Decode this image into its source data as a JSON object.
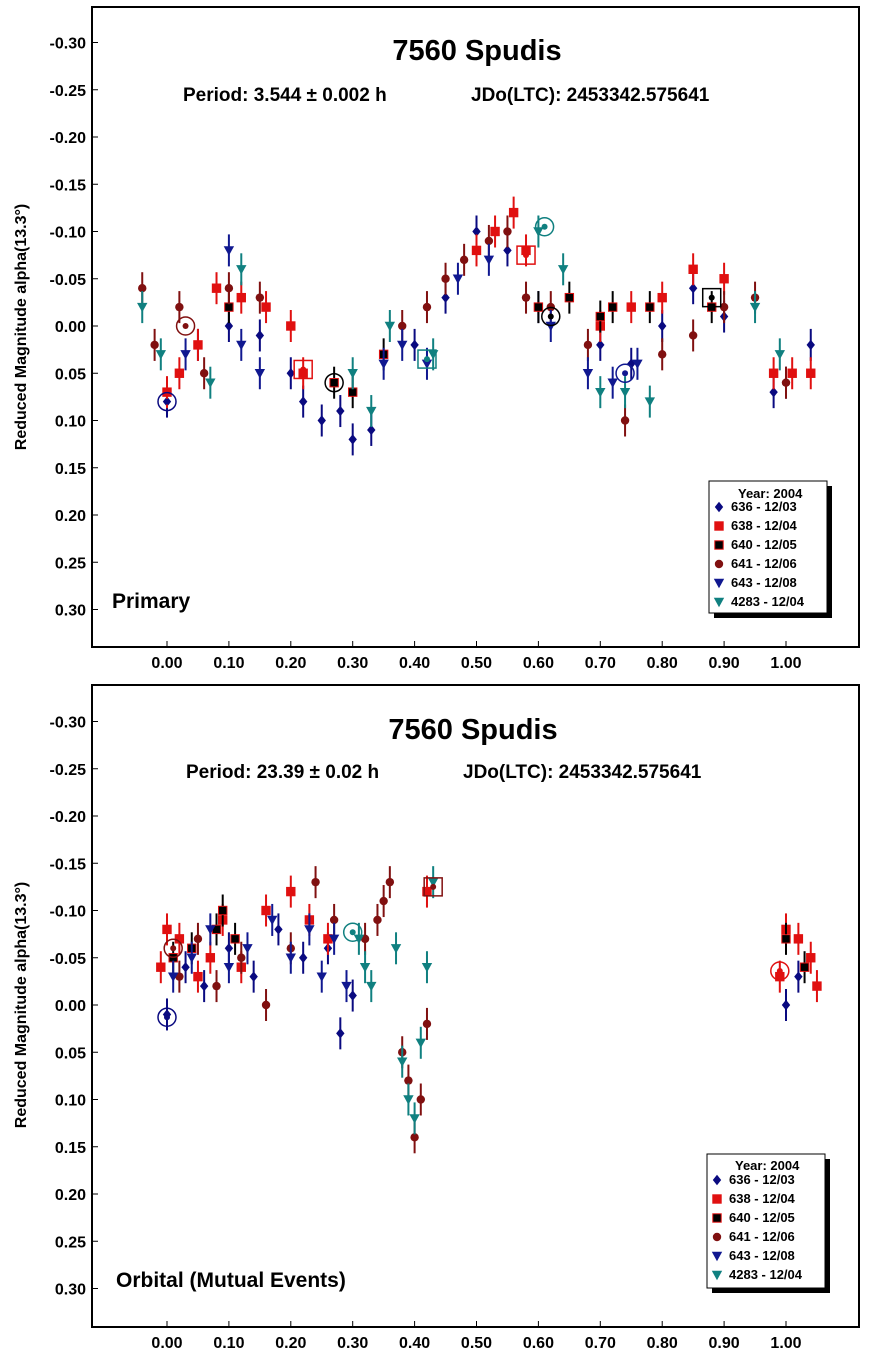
{
  "colors": {
    "636": "#0a0a80",
    "638": "#e01010",
    "640": "#000000",
    "641": "#801010",
    "643": "#101890",
    "4283": "#108080"
  },
  "chart_data": [
    {
      "type": "scatter",
      "title": "7560 Spudis",
      "subtitle_period": "Period: 3.544 ± 0.002 h",
      "subtitle_epoch": "JDo(LTC): 2453342.575641",
      "panel_label": "Primary",
      "xlabel": "",
      "ylabel": "Reduced Magnitude alpha(13.3°)",
      "xlim": [
        -0.12,
        1.12
      ],
      "ylim": [
        -0.35,
        0.35
      ],
      "y_inverted": true,
      "x_ticks": [
        "0.00",
        "0.10",
        "0.20",
        "0.30",
        "0.40",
        "0.50",
        "0.60",
        "0.70",
        "0.80",
        "0.90",
        "1.00"
      ],
      "y_ticks": [
        "-0.30",
        "-0.25",
        "-0.20",
        "-0.15",
        "-0.10",
        "-0.05",
        "0.00",
        "0.05",
        "0.10",
        "0.15",
        "0.20",
        "0.25",
        "0.30"
      ],
      "legend": {
        "title": "Year: 2004",
        "position": "bottom-right",
        "entries": [
          "636 - 12/03",
          "638 - 12/04",
          "640 - 12/05",
          "641 - 12/06",
          "643 - 12/08",
          "4283 - 12/04"
        ]
      },
      "series": [
        {
          "name": "636 - 12/03",
          "marker": "diamond",
          "color_key": "636",
          "x": [
            0.0,
            0.05,
            0.1,
            0.15,
            0.2,
            0.22,
            0.25,
            0.28,
            0.3,
            0.33,
            0.4,
            0.45,
            0.5,
            0.55,
            0.6,
            0.7,
            0.75,
            0.8,
            0.85,
            0.9,
            0.98,
            1.0,
            1.04
          ],
          "y": [
            0.08,
            0.02,
            0.0,
            0.01,
            0.05,
            0.08,
            0.1,
            0.09,
            0.12,
            0.11,
            0.02,
            -0.03,
            -0.1,
            -0.08,
            -0.02,
            0.02,
            0.04,
            0.0,
            -0.04,
            -0.01,
            0.07,
            0.06,
            0.02
          ]
        },
        {
          "name": "638 - 12/04",
          "marker": "square",
          "color_key": "638",
          "x": [
            0.0,
            0.02,
            0.05,
            0.08,
            0.12,
            0.16,
            0.2,
            0.22,
            0.5,
            0.53,
            0.56,
            0.58,
            0.7,
            0.75,
            0.8,
            0.85,
            0.9,
            0.98,
            1.01,
            1.04
          ],
          "y": [
            0.07,
            0.05,
            0.02,
            -0.04,
            -0.03,
            -0.02,
            0.0,
            0.05,
            -0.08,
            -0.1,
            -0.12,
            -0.08,
            0.0,
            -0.02,
            -0.03,
            -0.06,
            -0.05,
            0.05,
            0.05,
            0.05
          ]
        },
        {
          "name": "640 - 12/05",
          "marker": "square",
          "color_key": "640",
          "x": [
            0.1,
            0.27,
            0.3,
            0.35,
            0.6,
            0.65,
            0.7,
            0.72,
            0.78,
            0.88
          ],
          "y": [
            -0.02,
            0.06,
            0.07,
            0.03,
            -0.02,
            -0.03,
            -0.01,
            -0.02,
            -0.02,
            -0.02
          ]
        },
        {
          "name": "641 - 12/06",
          "marker": "circle",
          "color_key": "641",
          "x": [
            -0.04,
            -0.02,
            0.02,
            0.06,
            0.1,
            0.15,
            0.38,
            0.42,
            0.45,
            0.48,
            0.52,
            0.55,
            0.58,
            0.62,
            0.68,
            0.74,
            0.8,
            0.85,
            0.9,
            0.95,
            1.0
          ],
          "y": [
            -0.04,
            0.02,
            -0.02,
            0.05,
            -0.04,
            -0.03,
            0.0,
            -0.02,
            -0.05,
            -0.07,
            -0.09,
            -0.1,
            -0.03,
            -0.02,
            0.02,
            0.1,
            0.03,
            0.01,
            -0.02,
            -0.03,
            0.06
          ]
        },
        {
          "name": "643 - 12/08",
          "marker": "triangle-down",
          "color_key": "643",
          "x": [
            0.03,
            0.1,
            0.12,
            0.15,
            0.35,
            0.38,
            0.42,
            0.47,
            0.52,
            0.62,
            0.68,
            0.72,
            0.76
          ],
          "y": [
            0.03,
            -0.08,
            0.02,
            0.05,
            0.04,
            0.02,
            0.04,
            -0.05,
            -0.07,
            0.0,
            0.05,
            0.06,
            0.04
          ]
        },
        {
          "name": "4283 - 12/04",
          "marker": "triangle-down",
          "color_key": "4283",
          "x": [
            -0.04,
            -0.01,
            0.07,
            0.12,
            0.3,
            0.33,
            0.36,
            0.43,
            0.6,
            0.64,
            0.7,
            0.74,
            0.78,
            0.95,
            0.99
          ],
          "y": [
            -0.02,
            0.03,
            0.06,
            -0.06,
            0.05,
            0.09,
            0.0,
            0.03,
            -0.1,
            -0.06,
            0.07,
            0.07,
            0.08,
            -0.02,
            0.03
          ]
        }
      ],
      "circled_points": [
        {
          "x": 0.0,
          "y": 0.08,
          "color_key": "636",
          "shape": "circle"
        },
        {
          "x": 0.03,
          "y": 0.0,
          "color_key": "641",
          "shape": "circle"
        },
        {
          "x": 0.22,
          "y": 0.046,
          "color_key": "638",
          "shape": "square"
        },
        {
          "x": 0.27,
          "y": 0.06,
          "color_key": "640",
          "shape": "circle"
        },
        {
          "x": 0.42,
          "y": 0.035,
          "color_key": "4283",
          "shape": "square"
        },
        {
          "x": 0.58,
          "y": -0.075,
          "color_key": "638",
          "shape": "square"
        },
        {
          "x": 0.61,
          "y": -0.105,
          "color_key": "4283",
          "shape": "circle"
        },
        {
          "x": 0.62,
          "y": -0.01,
          "color_key": "640",
          "shape": "circle"
        },
        {
          "x": 0.74,
          "y": 0.05,
          "color_key": "643",
          "shape": "circle"
        },
        {
          "x": 0.88,
          "y": -0.03,
          "color_key": "640",
          "shape": "square"
        }
      ]
    },
    {
      "type": "scatter",
      "title": "7560 Spudis",
      "subtitle_period": "Period: 23.39 ± 0.02 h",
      "subtitle_epoch": "JDo(LTC): 2453342.575641",
      "panel_label": "Orbital (Mutual Events)",
      "xlabel": "",
      "ylabel": "Reduced Magnitude alpha(13.3°)",
      "xlim": [
        -0.12,
        1.12
      ],
      "ylim": [
        -0.35,
        0.35
      ],
      "y_inverted": true,
      "x_ticks": [
        "0.00",
        "0.10",
        "0.20",
        "0.30",
        "0.40",
        "0.50",
        "0.60",
        "0.70",
        "0.80",
        "0.90",
        "1.00"
      ],
      "y_ticks": [
        "-0.30",
        "-0.25",
        "-0.20",
        "-0.15",
        "-0.10",
        "-0.05",
        "0.00",
        "0.05",
        "0.10",
        "0.15",
        "0.20",
        "0.25",
        "0.30"
      ],
      "legend": {
        "title": "Year: 2004",
        "position": "bottom-right",
        "entries": [
          "636 - 12/03",
          "638 - 12/04",
          "640 - 12/05",
          "641 - 12/06",
          "643 - 12/08",
          "4283 - 12/04"
        ]
      },
      "series": [
        {
          "name": "636 - 12/03",
          "marker": "diamond",
          "color_key": "636",
          "x": [
            0.0,
            0.03,
            0.06,
            0.1,
            0.14,
            0.18,
            0.22,
            0.26,
            0.28,
            0.3,
            1.0,
            1.02
          ],
          "y": [
            0.01,
            -0.04,
            -0.02,
            -0.06,
            -0.03,
            -0.08,
            -0.05,
            -0.06,
            0.03,
            -0.01,
            0.0,
            -0.03
          ]
        },
        {
          "name": "638 - 12/04",
          "marker": "square",
          "color_key": "638",
          "x": [
            -0.01,
            0.0,
            0.02,
            0.05,
            0.07,
            0.09,
            0.12,
            0.16,
            0.2,
            0.23,
            0.26,
            0.42,
            0.99,
            1.0,
            1.02,
            1.04,
            1.05
          ],
          "y": [
            -0.04,
            -0.08,
            -0.07,
            -0.03,
            -0.05,
            -0.09,
            -0.04,
            -0.1,
            -0.12,
            -0.09,
            -0.07,
            -0.12,
            -0.03,
            -0.08,
            -0.07,
            -0.05,
            -0.02
          ]
        },
        {
          "name": "640 - 12/05",
          "marker": "square",
          "color_key": "640",
          "x": [
            0.01,
            0.04,
            0.08,
            0.09,
            0.11,
            1.0,
            1.03
          ],
          "y": [
            -0.05,
            -0.06,
            -0.08,
            -0.1,
            -0.07,
            -0.07,
            -0.04
          ]
        },
        {
          "name": "641 - 12/06",
          "marker": "circle",
          "color_key": "641",
          "x": [
            0.02,
            0.05,
            0.08,
            0.12,
            0.16,
            0.2,
            0.24,
            0.27,
            0.32,
            0.34,
            0.35,
            0.36,
            0.38,
            0.39,
            0.4,
            0.41,
            0.42
          ],
          "y": [
            -0.03,
            -0.07,
            -0.02,
            -0.05,
            0.0,
            -0.06,
            -0.13,
            -0.09,
            -0.07,
            -0.09,
            -0.11,
            -0.13,
            0.05,
            0.08,
            0.14,
            0.1,
            0.02
          ]
        },
        {
          "name": "643 - 12/08",
          "marker": "triangle-down",
          "color_key": "643",
          "x": [
            0.01,
            0.04,
            0.07,
            0.1,
            0.13,
            0.17,
            0.2,
            0.23,
            0.25,
            0.27,
            0.29
          ],
          "y": [
            -0.03,
            -0.05,
            -0.08,
            -0.04,
            -0.06,
            -0.09,
            -0.05,
            -0.08,
            -0.03,
            -0.07,
            -0.02
          ]
        },
        {
          "name": "4283 - 12/04",
          "marker": "triangle-down",
          "color_key": "4283",
          "x": [
            0.31,
            0.32,
            0.33,
            0.37,
            0.38,
            0.39,
            0.4,
            0.41,
            0.42,
            0.43
          ],
          "y": [
            -0.07,
            -0.04,
            -0.02,
            -0.06,
            0.06,
            0.1,
            0.12,
            0.04,
            -0.04,
            -0.13
          ]
        }
      ],
      "circled_points": [
        {
          "x": 0.0,
          "y": 0.013,
          "color_key": "636",
          "shape": "circle"
        },
        {
          "x": 0.01,
          "y": -0.06,
          "color_key": "641",
          "shape": "circle"
        },
        {
          "x": 0.3,
          "y": -0.077,
          "color_key": "4283",
          "shape": "circle"
        },
        {
          "x": 0.43,
          "y": -0.125,
          "color_key": "641",
          "shape": "square"
        },
        {
          "x": 0.99,
          "y": -0.036,
          "color_key": "638",
          "shape": "circle"
        }
      ]
    }
  ]
}
